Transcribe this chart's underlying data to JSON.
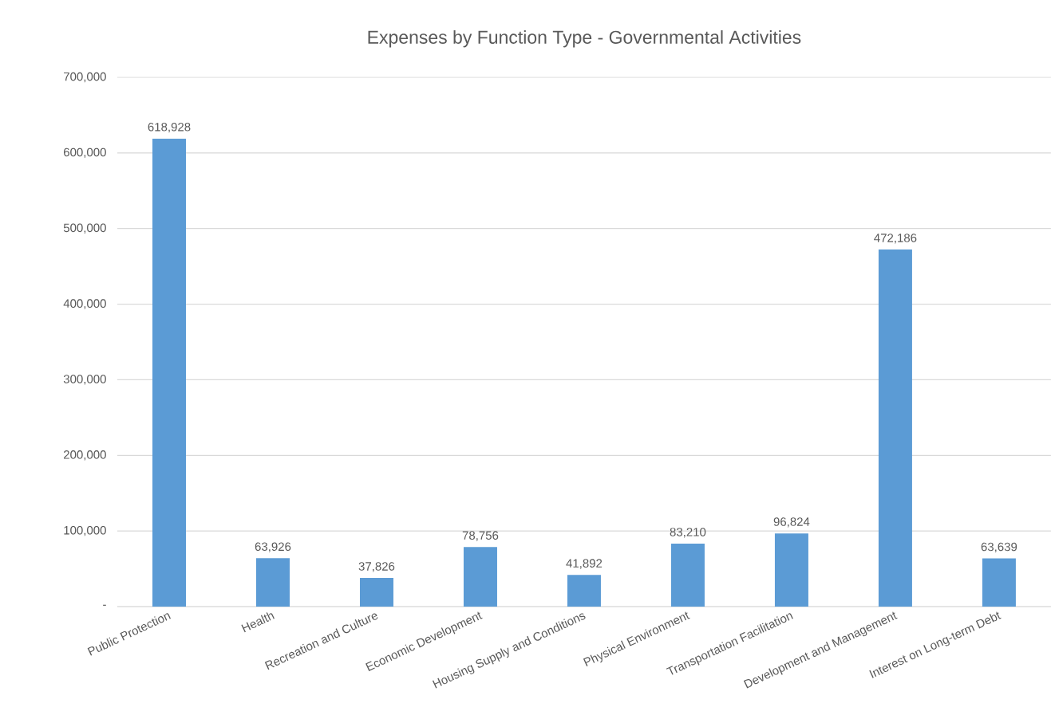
{
  "chart_data": {
    "type": "bar",
    "title": "Expenses by Function Type - Governmental Activities",
    "categories": [
      "Public Protection",
      "Health",
      "Recreation and Culture",
      "Economic Development",
      "Housing Supply and Conditions",
      "Physical Environment",
      "Transportation Facilitation",
      "Development and Management",
      "Interest on Long-term Debt"
    ],
    "values": [
      618928,
      63926,
      37826,
      78756,
      41892,
      83210,
      96824,
      472186,
      63639
    ],
    "value_labels": [
      "618,928",
      "63,926",
      "37,826",
      "78,756",
      "41,892",
      "83,210",
      "96,824",
      "472,186",
      "63,639"
    ],
    "color": "#5b9bd5",
    "ylim": [
      0,
      700000
    ],
    "yticks": [
      {
        "value": 0,
        "label": "-"
      },
      {
        "value": 100000,
        "label": "100,000"
      },
      {
        "value": 200000,
        "label": "200,000"
      },
      {
        "value": 300000,
        "label": "300,000"
      },
      {
        "value": 400000,
        "label": "400,000"
      },
      {
        "value": 500000,
        "label": "500,000"
      },
      {
        "value": 600000,
        "label": "600,000"
      },
      {
        "value": 700000,
        "label": "700,000"
      }
    ],
    "grid": "y"
  }
}
